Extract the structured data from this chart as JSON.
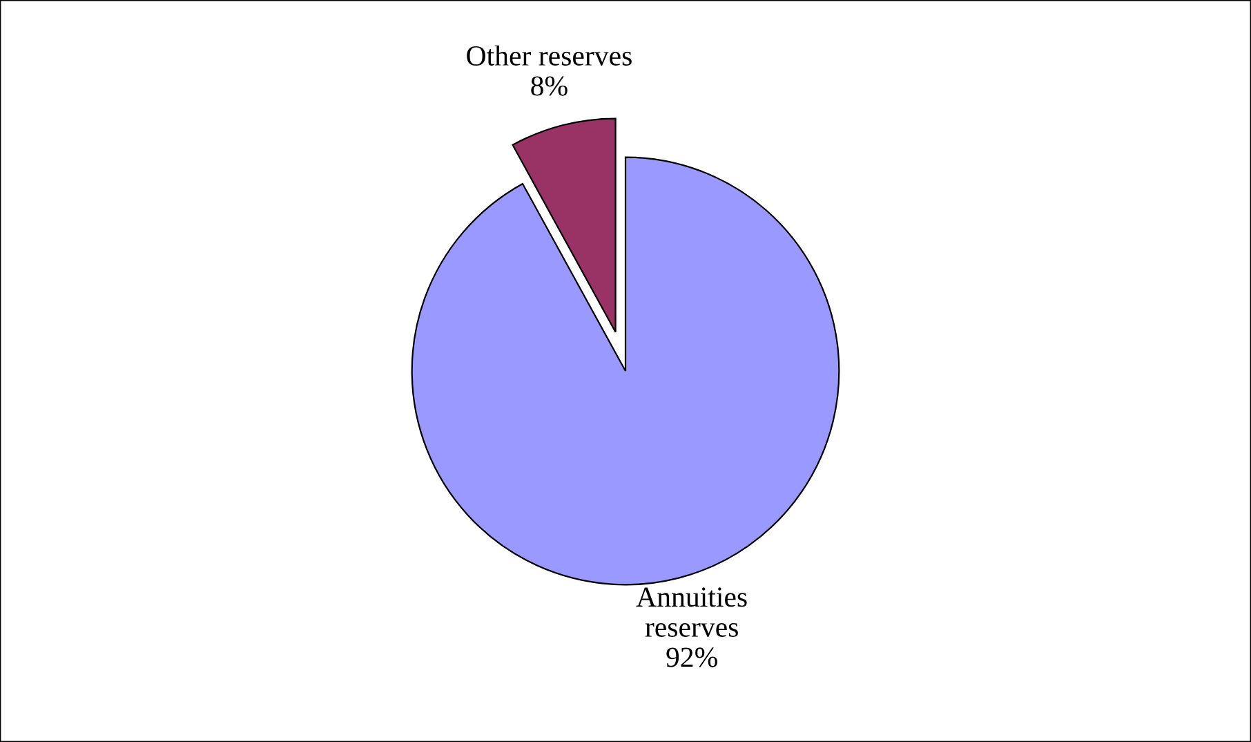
{
  "chart_data": {
    "type": "pie",
    "categories": [
      "Annuities\nreserves",
      "Other reserves"
    ],
    "values": [
      92,
      8
    ],
    "colors": [
      "#9999ff",
      "#993366"
    ],
    "value_labels": [
      "92%",
      "8%"
    ]
  }
}
